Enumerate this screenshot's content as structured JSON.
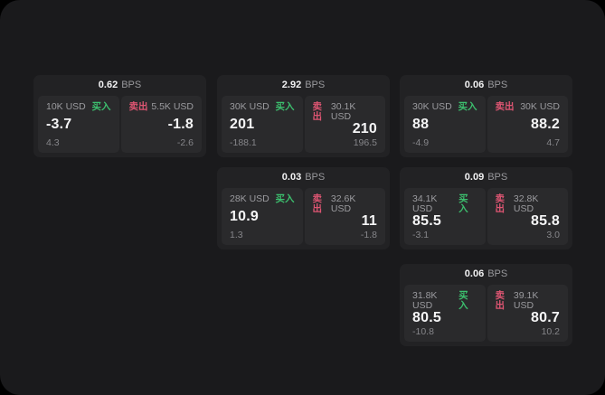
{
  "window": {
    "background": "#000000",
    "surface": "#1a1a1c"
  },
  "colors": {
    "buy_green": "#3cbf6e",
    "sell_red": "#dd5572",
    "card_bg": "#222224",
    "panel_bg": "#2a2a2c",
    "text_primary": "#f5f5f6",
    "text_secondary": "#9b9b9f",
    "text_muted": "#86868a"
  },
  "labels": {
    "buy": "买入",
    "sell": "卖出",
    "bps_unit": "BPS"
  },
  "cards": [
    {
      "bps": "0.62",
      "buy": {
        "size": "10K USD",
        "price": "-3.7",
        "change": "4.3"
      },
      "sell": {
        "size": "5.5K USD",
        "price": "-1.8",
        "change": "-2.6"
      }
    },
    {
      "bps": "2.92",
      "buy": {
        "size": "30K USD",
        "price": "201",
        "change": "-188.1"
      },
      "sell": {
        "size": "30.1K USD",
        "price": "210",
        "change": "196.5"
      }
    },
    {
      "bps": "0.06",
      "buy": {
        "size": "30K USD",
        "price": "88",
        "change": "-4.9"
      },
      "sell": {
        "size": "30K USD",
        "price": "88.2",
        "change": "4.7"
      }
    },
    {
      "bps": "0.03",
      "buy": {
        "size": "28K USD",
        "price": "10.9",
        "change": "1.3"
      },
      "sell": {
        "size": "32.6K USD",
        "price": "11",
        "change": "-1.8"
      }
    },
    {
      "bps": "0.09",
      "buy": {
        "size": "34.1K USD",
        "price": "85.5",
        "change": "-3.1"
      },
      "sell": {
        "size": "32.8K USD",
        "price": "85.8",
        "change": "3.0"
      }
    },
    {
      "bps": "0.06",
      "buy": {
        "size": "31.8K USD",
        "price": "80.5",
        "change": "-10.8"
      },
      "sell": {
        "size": "39.1K USD",
        "price": "80.7",
        "change": "10.2"
      }
    }
  ]
}
